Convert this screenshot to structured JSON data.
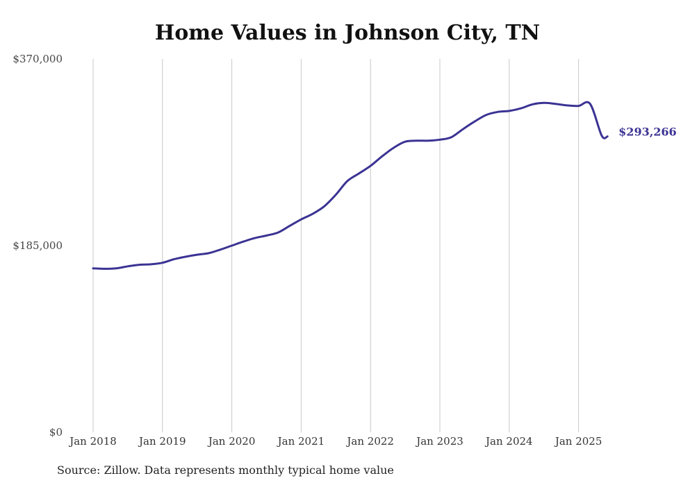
{
  "chart_data": {
    "type": "line",
    "title": "Home Values in Johnson City, TN",
    "source": "Source: Zillow. Data represents monthly typical home value",
    "ylim": [
      0,
      370000
    ],
    "y_ticks": [
      0,
      185000,
      370000
    ],
    "y_tick_labels": [
      "$0",
      "$185,000",
      "$370,000"
    ],
    "x_ticks": [
      "2018-01",
      "2019-01",
      "2020-01",
      "2021-01",
      "2022-01",
      "2023-01",
      "2024-01",
      "2025-01"
    ],
    "x_tick_labels": [
      "Jan 2018",
      "Jan 2019",
      "Jan 2020",
      "Jan 2021",
      "Jan 2022",
      "Jan 2023",
      "Jan 2024",
      "Jan 2025"
    ],
    "x_range": [
      "2018-01",
      "2025-06"
    ],
    "grid": "vertical",
    "end_label": "$293,266",
    "line_color": "#3b3393",
    "series": [
      {
        "x": [
          "2018-01",
          "2018-03",
          "2018-05",
          "2018-07",
          "2018-09",
          "2018-11",
          "2019-01",
          "2019-03",
          "2019-05",
          "2019-07",
          "2019-09",
          "2019-11",
          "2020-01",
          "2020-03",
          "2020-05",
          "2020-07",
          "2020-09",
          "2020-11",
          "2021-01",
          "2021-03",
          "2021-05",
          "2021-07",
          "2021-09",
          "2021-11",
          "2022-01",
          "2022-03",
          "2022-05",
          "2022-07",
          "2022-09",
          "2022-11",
          "2023-01",
          "2023-03",
          "2023-05",
          "2023-07",
          "2023-09",
          "2023-11",
          "2024-01",
          "2024-03",
          "2024-05",
          "2024-07",
          "2024-09",
          "2024-11",
          "2025-01",
          "2025-03",
          "2025-05",
          "2025-06"
        ],
        "values": [
          162500,
          162000,
          162500,
          164500,
          166000,
          166500,
          168000,
          171500,
          174000,
          176000,
          177500,
          181000,
          185000,
          189000,
          192500,
          195000,
          198000,
          204500,
          211000,
          216500,
          224000,
          235500,
          249000,
          256500,
          264000,
          273500,
          282000,
          288000,
          289000,
          289000,
          290000,
          292500,
          300500,
          308000,
          314500,
          317500,
          318500,
          321000,
          325000,
          326500,
          325500,
          324000,
          323500,
          325500,
          294000,
          293266
        ]
      }
    ]
  }
}
